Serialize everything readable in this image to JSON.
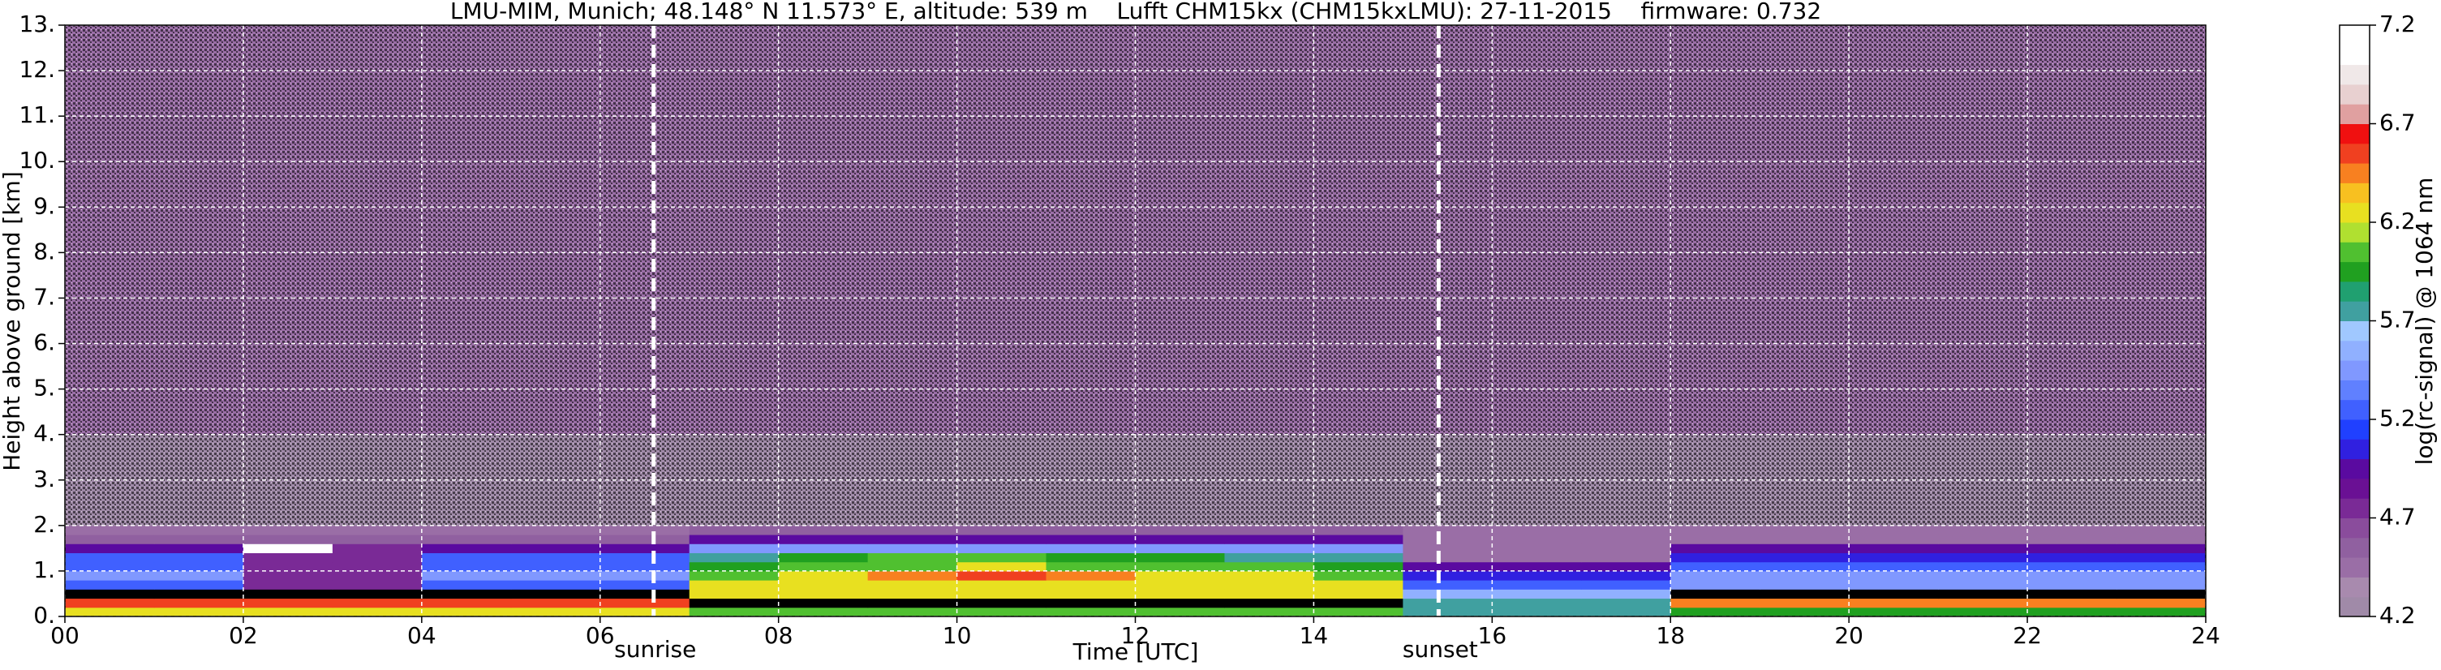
{
  "chart_data": {
    "type": "heatmap",
    "title": "LMU-MIM, Munich; 48.148° N 11.573° E, altitude: 539 m    Lufft CHM15kx (CHM15kxLMU): 27-11-2015    firmware: 0.732",
    "xlabel": "Time [UTC]",
    "ylabel": "Height above ground [km]",
    "xlim": [
      0,
      24
    ],
    "xticks": [
      {
        "value": 0,
        "label": "00"
      },
      {
        "value": 2,
        "label": "02"
      },
      {
        "value": 4,
        "label": "04"
      },
      {
        "value": 6,
        "label": "06"
      },
      {
        "value": 8,
        "label": "08"
      },
      10,
      12,
      14,
      16,
      18,
      20,
      22,
      24
    ],
    "ylim": [
      0,
      13
    ],
    "yticks": [
      {
        "value": 0,
        "label": "0."
      },
      {
        "value": 1,
        "label": "1."
      },
      {
        "value": 2,
        "label": "2."
      },
      {
        "value": 3,
        "label": "3."
      },
      {
        "value": 4,
        "label": "4."
      },
      {
        "value": 5,
        "label": "5."
      },
      {
        "value": 6,
        "label": "6."
      },
      {
        "value": 7,
        "label": "7."
      },
      {
        "value": 8,
        "label": "8."
      },
      {
        "value": 9,
        "label": "9."
      },
      {
        "value": 10,
        "label": "10."
      },
      {
        "value": 11,
        "label": "11."
      },
      {
        "value": 12,
        "label": "12."
      },
      {
        "value": 13,
        "label": "13."
      }
    ],
    "grid": true,
    "x_edges": [
      0,
      1,
      2,
      3,
      4,
      5,
      6,
      7,
      8,
      9,
      10,
      11,
      12,
      13,
      14,
      15,
      16,
      17,
      18,
      19,
      20,
      21,
      22,
      23,
      24
    ],
    "y_edges": [
      0,
      0.2,
      0.4,
      0.6,
      0.8,
      1.0,
      1.2,
      1.4,
      1.6,
      1.8,
      2.0,
      4.0,
      13.0
    ],
    "z": [
      [
        6.3,
        6.3,
        6.3,
        6.3,
        6.3,
        6.3,
        6.3,
        6.0,
        6.0,
        6.0,
        6.0,
        6.0,
        6.0,
        6.0,
        6.0,
        5.8,
        5.8,
        5.8,
        5.9,
        5.9,
        5.9,
        5.9,
        5.9,
        5.9
      ],
      [
        6.5,
        6.5,
        6.5,
        6.5,
        6.5,
        6.5,
        6.5,
        7.5,
        7.5,
        7.5,
        7.5,
        7.5,
        7.5,
        7.5,
        7.5,
        5.8,
        5.8,
        5.8,
        6.4,
        6.4,
        6.4,
        6.4,
        6.4,
        6.4
      ],
      [
        7.5,
        7.5,
        7.5,
        7.5,
        7.5,
        7.5,
        7.5,
        6.3,
        6.3,
        6.3,
        6.3,
        6.3,
        6.3,
        6.3,
        6.3,
        5.6,
        5.6,
        5.6,
        7.5,
        7.5,
        7.5,
        7.5,
        7.5,
        7.5
      ],
      [
        5.3,
        5.3,
        4.8,
        4.8,
        5.3,
        5.3,
        5.3,
        6.2,
        6.2,
        6.2,
        6.2,
        6.2,
        6.2,
        6.2,
        6.2,
        5.3,
        5.3,
        5.3,
        5.4,
        5.4,
        5.4,
        5.4,
        5.4,
        5.4
      ],
      [
        5.4,
        5.4,
        4.8,
        4.8,
        5.4,
        5.4,
        5.4,
        6.1,
        6.2,
        6.4,
        6.5,
        6.4,
        6.2,
        6.2,
        6.1,
        5.1,
        5.1,
        5.1,
        5.4,
        5.4,
        5.4,
        5.4,
        5.4,
        5.4
      ],
      [
        5.3,
        5.3,
        4.8,
        4.8,
        5.3,
        5.3,
        5.3,
        5.9,
        6.0,
        6.1,
        6.2,
        6.1,
        6.0,
        6.0,
        5.9,
        4.9,
        4.9,
        4.9,
        5.3,
        5.3,
        5.3,
        5.3,
        5.3,
        5.3
      ],
      [
        5.2,
        5.2,
        4.7,
        4.7,
        5.2,
        5.2,
        5.2,
        5.8,
        5.9,
        6.0,
        6.0,
        5.9,
        5.9,
        5.8,
        5.7,
        4.5,
        4.5,
        4.5,
        5.1,
        5.1,
        5.1,
        5.1,
        5.1,
        5.1
      ],
      [
        4.9,
        4.9,
        7.2,
        4.7,
        4.9,
        4.9,
        4.9,
        5.4,
        5.4,
        5.4,
        5.4,
        5.4,
        5.4,
        5.4,
        5.4,
        4.4,
        4.4,
        4.4,
        4.9,
        4.9,
        4.9,
        4.9,
        4.9,
        4.9
      ],
      [
        4.6,
        4.6,
        4.6,
        4.6,
        4.6,
        4.6,
        4.6,
        5.0,
        5.0,
        5.0,
        5.0,
        5.0,
        5.0,
        5.0,
        5.0,
        4.4,
        4.4,
        4.4,
        4.4,
        4.4,
        4.4,
        4.4,
        4.4,
        4.4
      ],
      [
        4.4,
        4.4,
        4.4,
        4.4,
        4.4,
        4.4,
        4.4,
        4.6,
        4.6,
        4.6,
        4.6,
        4.6,
        4.6,
        4.6,
        4.6,
        4.4,
        4.4,
        4.4,
        4.4,
        4.4,
        4.4,
        4.4,
        4.4,
        4.4
      ],
      [
        4.3,
        4.3,
        4.3,
        4.3,
        4.3,
        4.3,
        4.3,
        4.3,
        4.3,
        4.3,
        4.3,
        4.3,
        4.3,
        4.3,
        4.3,
        4.3,
        4.3,
        4.3,
        4.3,
        4.3,
        4.3,
        4.3,
        4.3,
        4.3
      ],
      [
        4.4,
        4.4,
        4.4,
        4.4,
        4.4,
        4.4,
        4.4,
        4.4,
        4.4,
        4.4,
        4.4,
        4.4,
        4.4,
        4.4,
        4.4,
        4.4,
        4.4,
        4.4,
        4.4,
        4.4,
        4.4,
        4.4,
        4.4,
        4.4
      ]
    ],
    "annotations": [
      {
        "x": 6.6,
        "text": "sunrise"
      },
      {
        "x": 15.4,
        "text": "sunset"
      }
    ],
    "colorbar": {
      "label": "log(rc-signal) @ 1064 nm",
      "lim": [
        4.2,
        7.2
      ],
      "ticks": [
        4.2,
        4.7,
        5.2,
        5.7,
        6.2,
        6.7,
        7.2
      ],
      "over_color": "#000000",
      "colors": [
        "#a08aa8",
        "#a88aae",
        "#9a6ea6",
        "#9060a0",
        "#8a4c9c",
        "#7a2a96",
        "#6a1094",
        "#5a0aa0",
        "#3020e0",
        "#2040ff",
        "#4060ff",
        "#6080ff",
        "#8098ff",
        "#90b0ff",
        "#a0c8ff",
        "#40a0a0",
        "#20a070",
        "#20a020",
        "#50c030",
        "#b0e030",
        "#e8e020",
        "#f8c020",
        "#f88020",
        "#f04020",
        "#f01010",
        "#e0a0a0",
        "#e8d0d0",
        "#f0e8e8",
        "#ffffff",
        "#ffffff"
      ]
    }
  }
}
